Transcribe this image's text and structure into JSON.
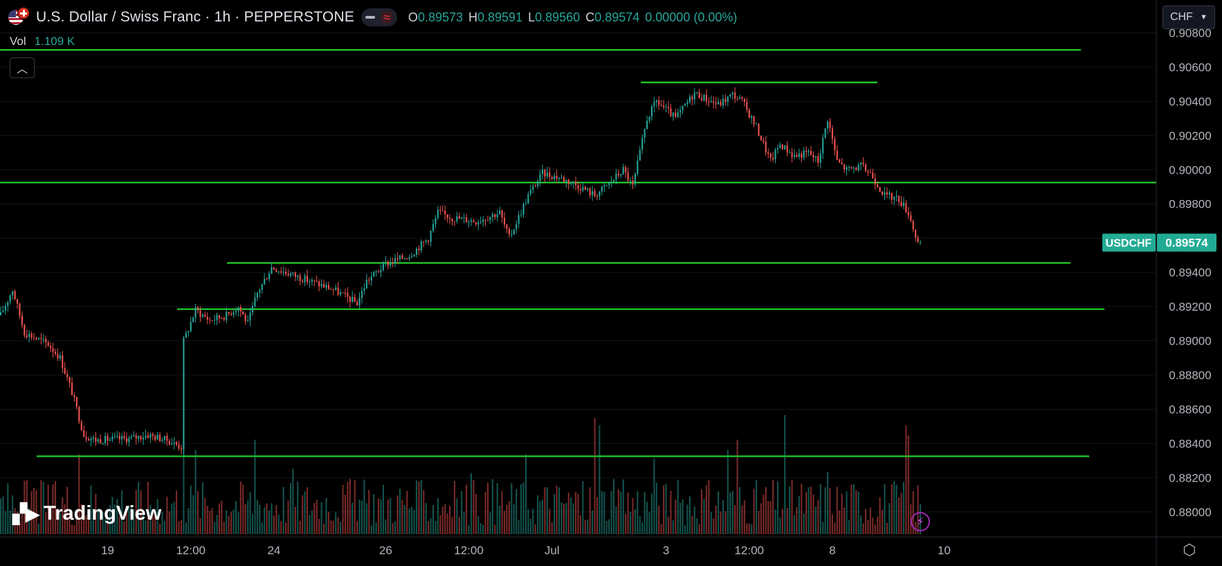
{
  "header": {
    "title": "U.S. Dollar / Swiss Franc · 1h · PEPPERSTONE",
    "open_label": "O",
    "open": "0.89573",
    "high_label": "H",
    "high": "0.89591",
    "low_label": "L",
    "low": "0.89560",
    "close_label": "C",
    "close": "0.89574",
    "change": "0.00000 (0.00%)"
  },
  "volume": {
    "label": "Vol",
    "value": "1.109 K"
  },
  "currency_selector": "CHF",
  "branding": {
    "logo_text": "TradingView"
  },
  "icons": {
    "collapse": "chevron-up-icon",
    "settings": "settings-icon",
    "alert": "lightning-icon"
  },
  "colors": {
    "up": "#26a69a",
    "down": "#ef5350",
    "level_line": "#22c22a",
    "background": "#000000"
  },
  "chart_data": {
    "type": "candlestick",
    "symbol_tag": "USDCHF",
    "last_price": 0.89574,
    "last_price_label": "0.89574",
    "ylim": [
      0.8787,
      0.9083
    ],
    "y_ticks": [
      "0.90800",
      "0.90600",
      "0.90400",
      "0.90200",
      "0.90000",
      "0.89800",
      "0.89600",
      "0.89400",
      "0.89200",
      "0.89000",
      "0.88800",
      "0.88600",
      "0.88400",
      "0.88200",
      "0.88000"
    ],
    "x_ticks": [
      "19",
      "12:00",
      "24",
      "26",
      "12:00",
      "Jul",
      "3",
      "12:00",
      "8",
      "10"
    ],
    "grid": true,
    "horizontal_levels": [
      0.907,
      0.9051,
      0.89925,
      0.89455,
      0.89185,
      0.88325
    ],
    "anchors": [
      [
        0,
        0.8915
      ],
      [
        5,
        0.893
      ],
      [
        10,
        0.8905
      ],
      [
        20,
        0.8898
      ],
      [
        25,
        0.889
      ],
      [
        30,
        0.887
      ],
      [
        35,
        0.8845
      ],
      [
        40,
        0.8842
      ],
      [
        55,
        0.8843
      ],
      [
        62,
        0.8845
      ],
      [
        70,
        0.8842
      ],
      [
        76,
        0.8838
      ],
      [
        77,
        0.89
      ],
      [
        82,
        0.8918
      ],
      [
        88,
        0.8912
      ],
      [
        95,
        0.8915
      ],
      [
        100,
        0.892
      ],
      [
        104,
        0.891
      ],
      [
        108,
        0.8928
      ],
      [
        114,
        0.8943
      ],
      [
        120,
        0.894
      ],
      [
        130,
        0.8935
      ],
      [
        140,
        0.893
      ],
      [
        150,
        0.8922
      ],
      [
        154,
        0.8935
      ],
      [
        162,
        0.8945
      ],
      [
        172,
        0.895
      ],
      [
        180,
        0.896
      ],
      [
        184,
        0.8975
      ],
      [
        190,
        0.8972
      ],
      [
        200,
        0.897
      ],
      [
        210,
        0.8975
      ],
      [
        214,
        0.896
      ],
      [
        222,
        0.8985
      ],
      [
        228,
        0.8998
      ],
      [
        236,
        0.8995
      ],
      [
        244,
        0.899
      ],
      [
        250,
        0.8985
      ],
      [
        256,
        0.8992
      ],
      [
        262,
        0.9
      ],
      [
        266,
        0.899
      ],
      [
        272,
        0.903
      ],
      [
        276,
        0.904
      ],
      [
        284,
        0.903
      ],
      [
        292,
        0.9045
      ],
      [
        296,
        0.9042
      ],
      [
        302,
        0.9038
      ],
      [
        308,
        0.9044
      ],
      [
        312,
        0.904
      ],
      [
        318,
        0.9025
      ],
      [
        324,
        0.9005
      ],
      [
        328,
        0.9015
      ],
      [
        334,
        0.9008
      ],
      [
        340,
        0.901
      ],
      [
        344,
        0.9005
      ],
      [
        348,
        0.903
      ],
      [
        352,
        0.9005
      ],
      [
        356,
        0.9
      ],
      [
        362,
        0.9002
      ],
      [
        366,
        0.8998
      ],
      [
        372,
        0.8985
      ],
      [
        378,
        0.8983
      ],
      [
        382,
        0.8975
      ],
      [
        386,
        0.8957
      ]
    ],
    "volume_spikes": [
      [
        33,
        0.55
      ],
      [
        77,
        0.72
      ],
      [
        82,
        0.58
      ],
      [
        107,
        0.65
      ],
      [
        123,
        0.45
      ],
      [
        147,
        0.38
      ],
      [
        198,
        0.42
      ],
      [
        221,
        0.55
      ],
      [
        250,
        0.8
      ],
      [
        252,
        0.75
      ],
      [
        275,
        0.52
      ],
      [
        306,
        0.58
      ],
      [
        310,
        0.65
      ],
      [
        330,
        0.82
      ],
      [
        348,
        0.43
      ],
      [
        381,
        0.75
      ],
      [
        382,
        0.68
      ]
    ]
  }
}
